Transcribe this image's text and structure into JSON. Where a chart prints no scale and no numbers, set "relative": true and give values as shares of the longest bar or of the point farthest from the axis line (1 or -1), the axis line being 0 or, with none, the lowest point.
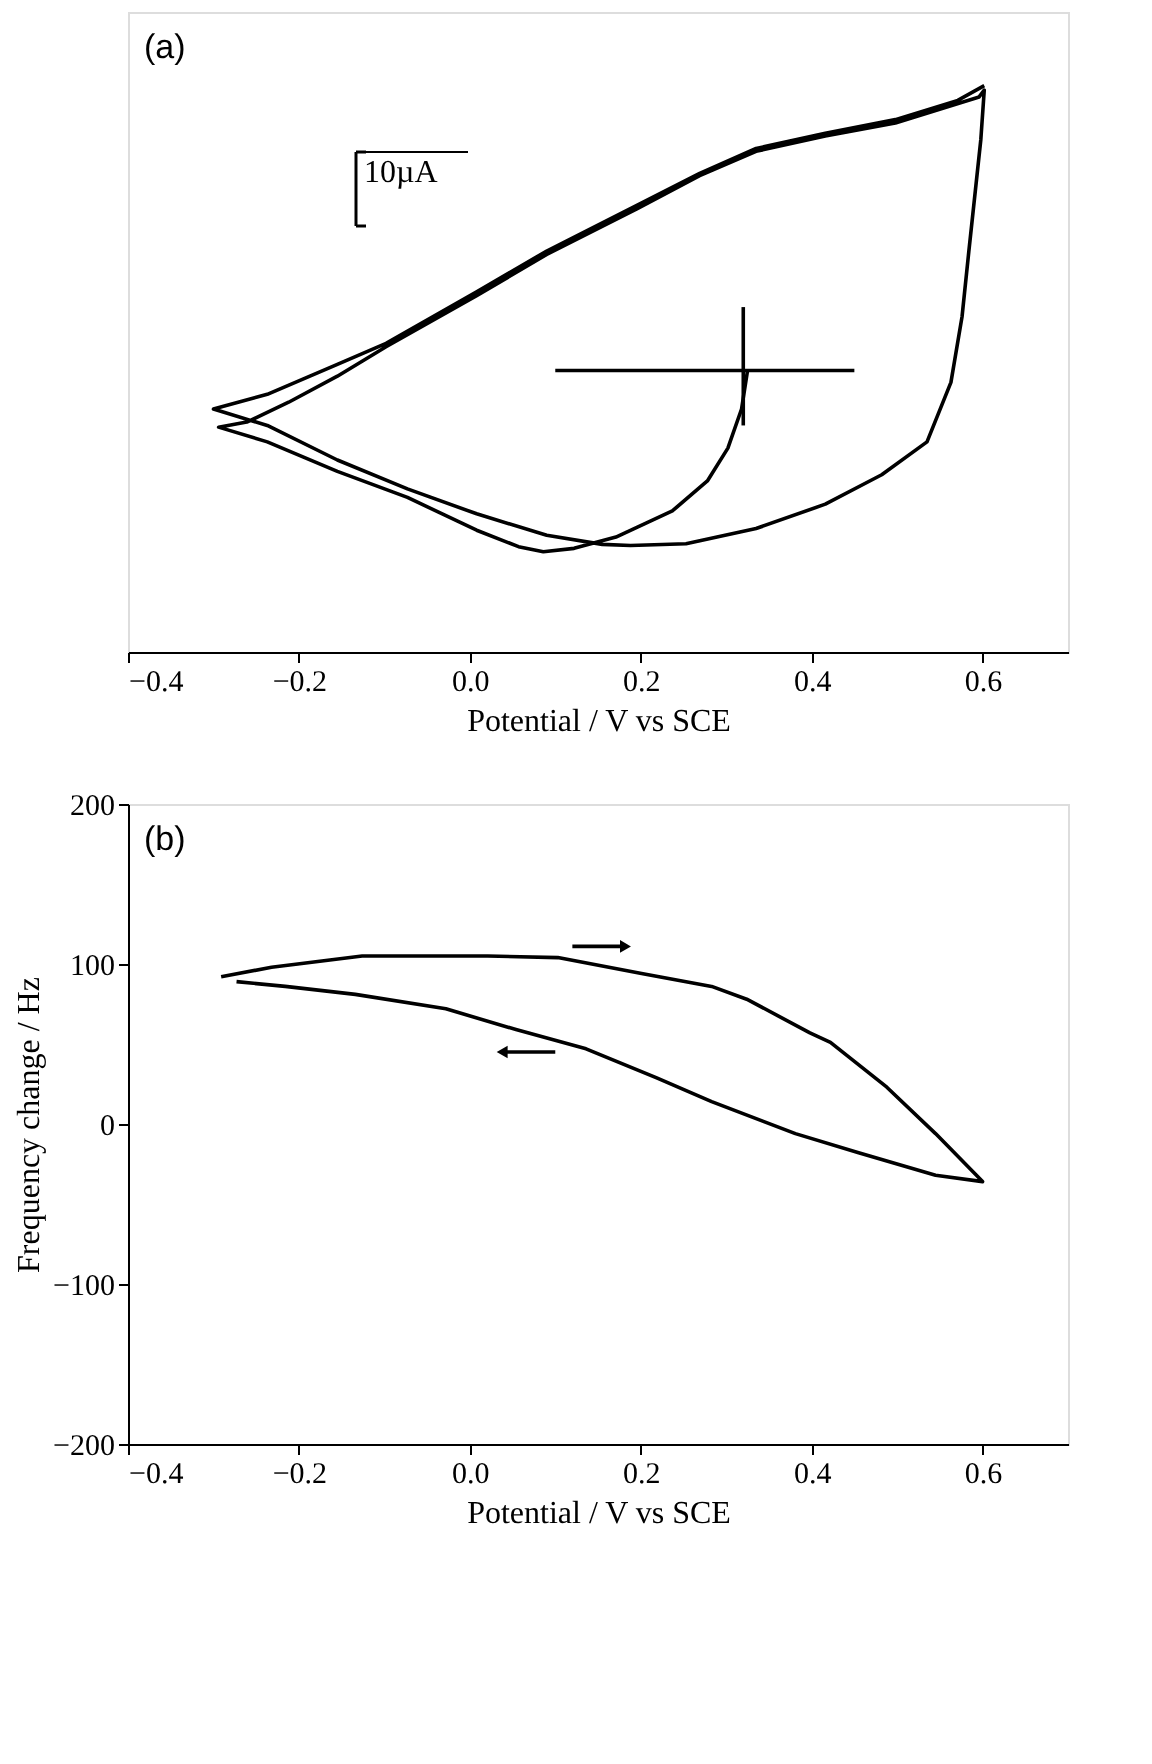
{
  "chart_data": [
    {
      "type": "line",
      "title": "(a)",
      "xlabel": "Potential / V vs SCE",
      "relative": true,
      "xlim": [
        -0.4,
        0.7
      ],
      "xticks": [
        -0.4,
        -0.2,
        {
          "value": 0,
          "label": "0.0"
        },
        0.2,
        0.4,
        0.6
      ],
      "annotations": [
        "10µA"
      ],
      "series": [
        {
          "color": "#000000",
          "x": [
            0.325,
            0.318,
            0.302,
            0.278,
            0.237,
            0.171,
            0.122,
            0.086,
            0.057,
            0.008,
            -0.073,
            -0.155,
            -0.237,
            -0.294,
            -0.261,
            -0.212,
            -0.155,
            -0.098,
            0.008,
            0.09,
            0.196,
            0.269,
            0.335,
            0.416,
            0.498,
            0.596,
            0.602,
            0.598,
            0.584,
            0.576,
            0.563,
            0.535,
            0.482,
            0.416,
            0.335,
            0.253,
            0.188,
            0.155,
            0.09,
            0.008,
            -0.073,
            -0.155,
            -0.237,
            -0.3,
            -0.237,
            -0.155,
            -0.098,
            0.008,
            0.09,
            0.196,
            0.269,
            0.335,
            0.416,
            0.498,
            0.571,
            0.602
          ],
          "values": [
            0.497,
            0.429,
            0.36,
            0.302,
            0.249,
            0.203,
            0.183,
            0.177,
            0.186,
            0.215,
            0.273,
            0.319,
            0.371,
            0.397,
            0.406,
            0.441,
            0.487,
            0.539,
            0.629,
            0.702,
            0.783,
            0.841,
            0.884,
            0.911,
            0.934,
            0.98,
            0.992,
            0.905,
            0.708,
            0.592,
            0.476,
            0.371,
            0.313,
            0.261,
            0.218,
            0.191,
            0.188,
            0.19,
            0.206,
            0.244,
            0.288,
            0.339,
            0.4,
            0.429,
            0.455,
            0.508,
            0.545,
            0.636,
            0.708,
            0.789,
            0.845,
            0.889,
            0.916,
            0.94,
            0.974,
            1.0
          ]
        },
        {
          "color": "#000000",
          "x": [
            0.1,
            0.45
          ],
          "values": [
            0.497,
            0.497
          ]
        },
        {
          "color": "#000000",
          "x": [
            0.32,
            0.32
          ],
          "values": [
            0.609,
            0.4
          ]
        }
      ]
    },
    {
      "type": "line",
      "title": "(b)",
      "xlabel": "Potential / V vs SCE",
      "ylabel": "Frequency change / Hz",
      "xlim": [
        -0.4,
        0.7
      ],
      "xticks": [
        -0.4,
        -0.2,
        {
          "value": 0,
          "label": "0.0"
        },
        0.2,
        0.4,
        0.6
      ],
      "ylim": [
        -200,
        200
      ],
      "yticks": [
        -200,
        -100,
        0,
        100,
        200
      ],
      "series": [
        {
          "color": "#000000",
          "x": [
            -0.291,
            -0.232,
            -0.126,
            0.021,
            0.103,
            0.201,
            0.283,
            0.324,
            0.398,
            0.422,
            0.488,
            0.545,
            0.6,
            0.545,
            0.455,
            0.381,
            0.283,
            0.218,
            0.136,
            0.054,
            -0.028,
            -0.134,
            -0.216,
            -0.273
          ],
          "values": [
            92,
            98,
            105,
            105,
            104,
            94,
            86,
            78,
            57,
            51,
            23,
            -6,
            -36,
            -32,
            -18,
            -6,
            14,
            29,
            47,
            59,
            72,
            81,
            86,
            89
          ]
        }
      ]
    }
  ]
}
